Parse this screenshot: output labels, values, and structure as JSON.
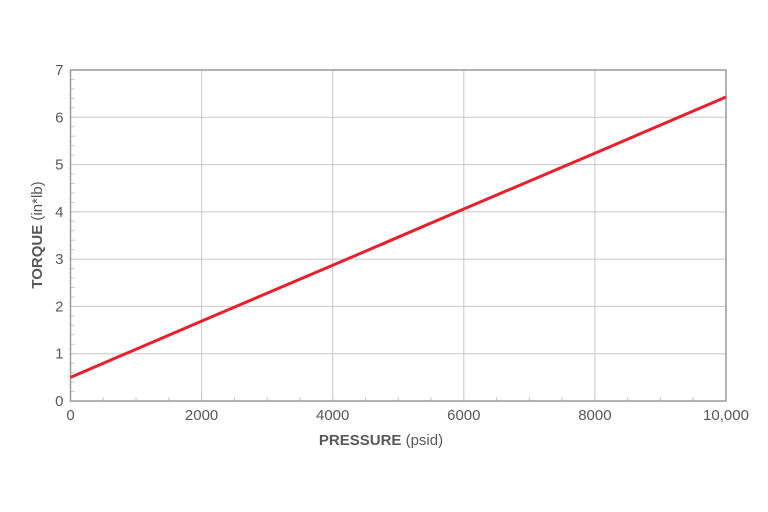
{
  "chart_data": {
    "type": "line",
    "title": "",
    "xlabel": "PRESSURE (psid)",
    "xlabel_bold": "PRESSURE",
    "xlabel_unit": " (psid)",
    "ylabel": "TORQUE (in*lb)",
    "ylabel_bold": "TORQUE",
    "ylabel_unit": " (in*lb)",
    "xlim": [
      0,
      10000
    ],
    "ylim": [
      0,
      7
    ],
    "x_ticks": [
      0,
      2000,
      4000,
      6000,
      8000,
      10000
    ],
    "x_tick_labels": [
      "0",
      "2000",
      "4000",
      "6000",
      "8000",
      "10,000"
    ],
    "x_minor_step": 500,
    "y_ticks": [
      0,
      1,
      2,
      3,
      4,
      5,
      6,
      7
    ],
    "y_tick_labels": [
      "0",
      "1",
      "2",
      "3",
      "4",
      "5",
      "6",
      "7"
    ],
    "y_minor_step": 0.2,
    "grid": true,
    "legend": null,
    "series": [
      {
        "name": "Torque",
        "color": "#e8202e",
        "x": [
          0,
          2000,
          4000,
          6000,
          8000,
          10000
        ],
        "y": [
          0.5,
          1.69,
          2.87,
          4.06,
          5.24,
          6.43
        ]
      }
    ]
  },
  "colors": {
    "grid": "#c8c8c8",
    "frame": "#9a9a9a",
    "text": "#58595b",
    "line": "#e8202e"
  }
}
